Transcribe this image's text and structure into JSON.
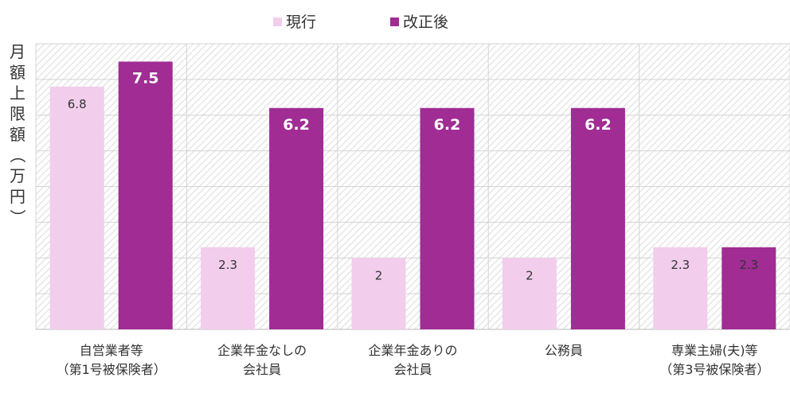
{
  "chart_data": {
    "type": "bar",
    "ylabel": "月額上限額（万円）",
    "ylim": [
      0,
      8
    ],
    "grid": true,
    "legend_position": "top",
    "categories": [
      [
        "自営業者等",
        "（第1号被保険者）"
      ],
      [
        "企業年金なしの",
        "会社員"
      ],
      [
        "企業年金ありの",
        "会社員"
      ],
      [
        "公務員"
      ],
      [
        "専業主婦(夫)等",
        "（第3号被保険者）"
      ]
    ],
    "series": [
      {
        "name": "現行",
        "color": "#f2cdec",
        "values": [
          6.8,
          2.3,
          2,
          2,
          2.3
        ],
        "labels": [
          "6.8",
          "2.3",
          "2",
          "2",
          "2.3"
        ]
      },
      {
        "name": "改正後",
        "color": "#a02c94",
        "values": [
          7.5,
          6.2,
          6.2,
          6.2,
          2.3
        ],
        "labels": [
          "7.5",
          "6.2",
          "6.2",
          "6.2",
          "2.3"
        ]
      }
    ]
  }
}
